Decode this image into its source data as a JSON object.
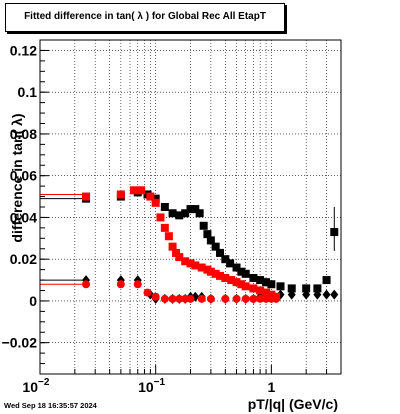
{
  "chart_data": {
    "type": "scatter",
    "title": "Fitted difference in tan( λ ) for Global Rec All EtapT",
    "xlabel": "pT/|q| (GeV/c)",
    "ylabel": "difference in tan( λ)",
    "x_scale": "log",
    "xlim": [
      0.01,
      4
    ],
    "ylim": [
      -0.035,
      0.125
    ],
    "y_tick_values": [
      -0.02,
      0,
      0.02,
      0.04,
      0.06,
      0.08,
      0.1,
      0.12
    ],
    "y_tick_labels": [
      "−0.02",
      "0",
      "0.02",
      "0.04",
      "0.06",
      "0.08",
      "0.1",
      "0.12"
    ],
    "x_tick_values": [
      0.01,
      0.1,
      1
    ],
    "x_tick_labels": [
      "10",
      "10",
      "1"
    ],
    "x_tick_exponents": [
      "−2",
      "−1",
      ""
    ],
    "grid": true,
    "series": [
      {
        "color": "#000000",
        "marker": "square",
        "x": [
          0.025,
          0.05,
          0.07,
          0.085,
          0.1,
          0.12,
          0.14,
          0.16,
          0.18,
          0.2,
          0.22,
          0.24,
          0.26,
          0.28,
          0.3,
          0.33,
          0.36,
          0.4,
          0.44,
          0.5,
          0.55,
          0.6,
          0.7,
          0.8,
          0.9,
          1.0,
          1.2,
          1.5,
          2.0,
          2.5,
          3.0,
          3.5
        ],
        "y": [
          0.049,
          0.05,
          0.052,
          0.051,
          0.049,
          0.045,
          0.042,
          0.041,
          0.042,
          0.044,
          0.044,
          0.042,
          0.036,
          0.032,
          0.029,
          0.026,
          0.023,
          0.02,
          0.018,
          0.016,
          0.014,
          0.013,
          0.011,
          0.01,
          0.009,
          0.008,
          0.007,
          0.006,
          0.006,
          0.006,
          0.01,
          0.033
        ]
      },
      {
        "color": "#000000",
        "marker": "diamond",
        "x": [
          0.025,
          0.05,
          0.07,
          0.09,
          0.1,
          0.12,
          0.14,
          0.16,
          0.18,
          0.2,
          0.22,
          0.25,
          0.3,
          0.4,
          0.5,
          0.6,
          0.7,
          0.8,
          0.9,
          1.0,
          1.2,
          1.5,
          2.0,
          2.5,
          3.0,
          3.5
        ],
        "y": [
          0.01,
          0.01,
          0.01,
          0.003,
          0.001,
          0.001,
          0.001,
          0.001,
          0.001,
          0.002,
          0.002,
          0.002,
          0.001,
          0.001,
          0.001,
          0.001,
          0.001,
          0.002,
          0.002,
          0.002,
          0.003,
          0.003,
          0.003,
          0.003,
          0.003,
          0.003
        ]
      },
      {
        "color": "#ff0000",
        "marker": "square",
        "x": [
          0.025,
          0.05,
          0.065,
          0.075,
          0.09,
          0.1,
          0.11,
          0.12,
          0.13,
          0.14,
          0.15,
          0.16,
          0.18,
          0.2,
          0.22,
          0.25,
          0.28,
          0.3,
          0.33,
          0.36,
          0.4,
          0.45,
          0.5,
          0.55,
          0.6,
          0.7,
          0.8,
          0.9,
          1.0,
          1.1
        ],
        "y": [
          0.05,
          0.051,
          0.053,
          0.053,
          0.05,
          0.047,
          0.04,
          0.035,
          0.031,
          0.026,
          0.023,
          0.021,
          0.019,
          0.018,
          0.017,
          0.016,
          0.015,
          0.014,
          0.013,
          0.012,
          0.011,
          0.01,
          0.009,
          0.008,
          0.007,
          0.006,
          0.005,
          0.004,
          0.003,
          0.002
        ]
      },
      {
        "color": "#ff0000",
        "marker": "circle",
        "x": [
          0.025,
          0.05,
          0.07,
          0.085,
          0.1,
          0.12,
          0.14,
          0.16,
          0.18,
          0.2,
          0.25,
          0.3,
          0.4,
          0.5,
          0.6,
          0.7,
          0.8,
          0.9,
          1.0,
          1.1
        ],
        "y": [
          0.008,
          0.008,
          0.008,
          0.004,
          0.002,
          0.001,
          0.001,
          0.001,
          0.001,
          0.001,
          0.001,
          0.001,
          0.001,
          0.001,
          0.001,
          0.001,
          0.001,
          0.001,
          0.001,
          0.001
        ]
      }
    ],
    "reference_lines": [
      {
        "color": "#000000",
        "y": 0.049,
        "x_from": 0.01,
        "x_to": 0.025
      },
      {
        "color": "#ff0000",
        "y": 0.051,
        "x_from": 0.01,
        "x_to": 0.025
      },
      {
        "color": "#000000",
        "y": 0.01,
        "x_from": 0.01,
        "x_to": 0.025
      },
      {
        "color": "#ff0000",
        "y": 0.008,
        "x_from": 0.01,
        "x_to": 0.025
      }
    ],
    "error_bars": [
      {
        "color": "#000000",
        "x": 3.5,
        "y": 0.033,
        "low": 0.024,
        "high": 0.045
      }
    ]
  },
  "footer": {
    "timestamp": "Wed Sep 18 16:35:57 2024"
  }
}
